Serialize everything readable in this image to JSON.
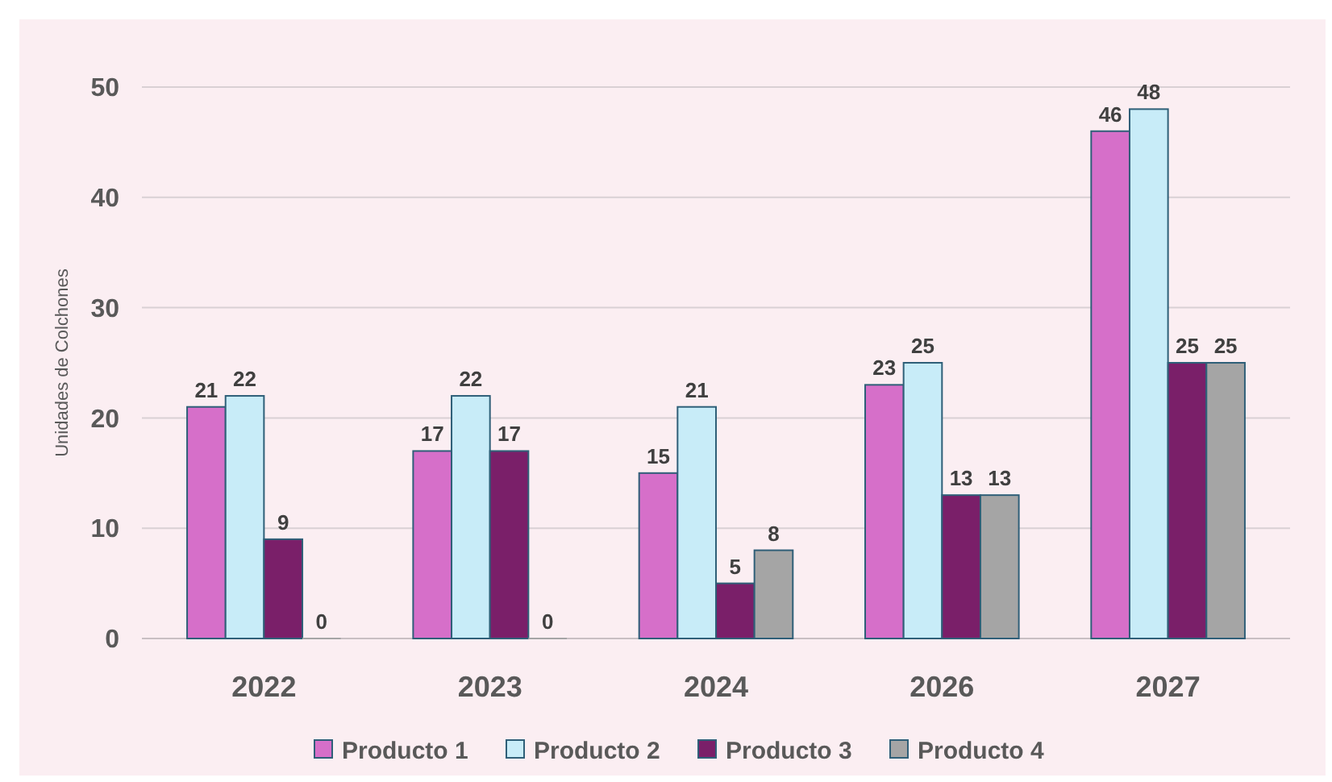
{
  "chart_data": {
    "type": "bar",
    "ylabel": "Unidades de Colchones",
    "categories": [
      "2022",
      "2023",
      "2024",
      "2026",
      "2027"
    ],
    "series": [
      {
        "name": "Producto 1",
        "color": "#d66fc9",
        "values": [
          21,
          17,
          15,
          23,
          46
        ]
      },
      {
        "name": "Producto 2",
        "color": "#c8ecf8",
        "values": [
          22,
          22,
          21,
          25,
          48
        ]
      },
      {
        "name": "Producto 3",
        "color": "#7a1f69",
        "values": [
          9,
          17,
          5,
          13,
          25
        ]
      },
      {
        "name": "Producto 4",
        "color": "#a5a5a5",
        "values": [
          0,
          0,
          8,
          13,
          25
        ]
      }
    ],
    "ylim": [
      0,
      50
    ],
    "yticks": [
      0,
      10,
      20,
      30,
      40,
      50
    ],
    "grid": "y",
    "legend": "bottom",
    "data_labels": true
  }
}
